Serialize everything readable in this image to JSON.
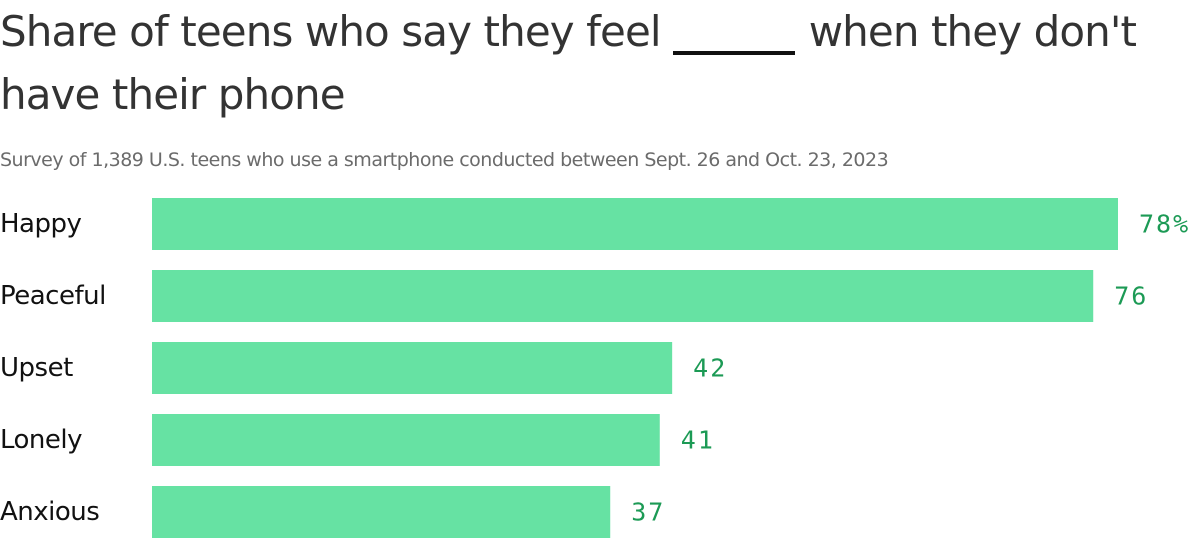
{
  "title_before": "Share of teens who say they feel",
  "title_after": "when they don't",
  "title_line2": "have their phone",
  "subtitle": "Survey of 1,389 U.S. teens who use a smartphone conducted between Sept. 26 and Oct. 23, 2023",
  "colors": {
    "bar": "#66e2a3",
    "value_label": "#1c9a55"
  },
  "chart_data": {
    "type": "bar",
    "orientation": "horizontal",
    "title": "Share of teens who say they feel _____ when they don't have their phone",
    "subtitle": "Survey of 1,389 U.S. teens who use a smartphone conducted between Sept. 26 and Oct. 23, 2023",
    "categories": [
      "Happy",
      "Peaceful",
      "Upset",
      "Lonely",
      "Anxious"
    ],
    "values": [
      78,
      76,
      42,
      41,
      37
    ],
    "value_labels": [
      "78%",
      "76",
      "42",
      "41",
      "37"
    ],
    "unit": "%",
    "xlim": [
      0,
      78
    ],
    "grid": false,
    "legend": "none"
  }
}
